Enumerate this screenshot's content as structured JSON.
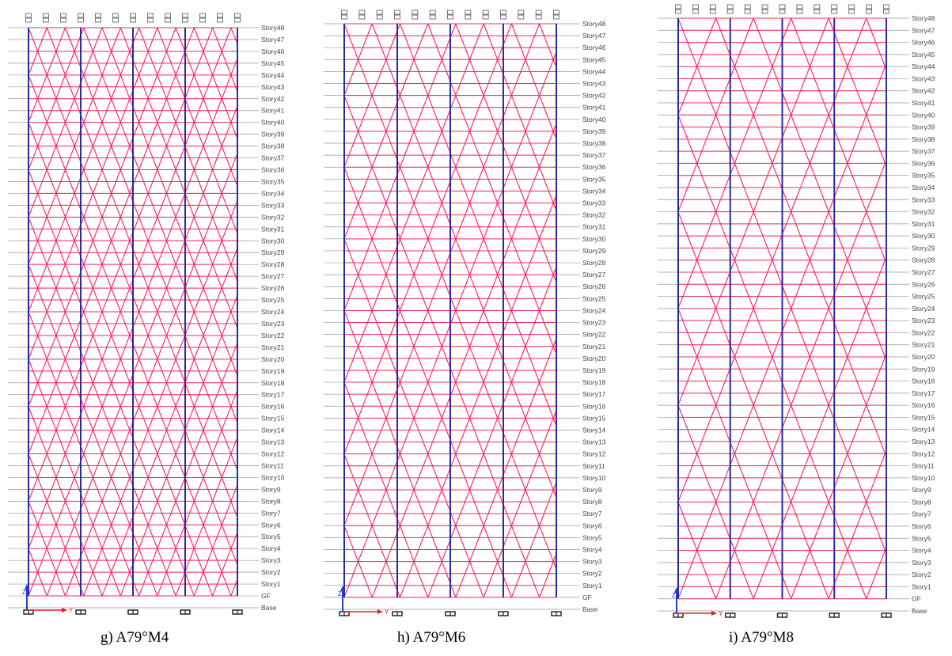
{
  "story_labels": [
    "Story48",
    "Story47",
    "Story46",
    "Story45",
    "Story44",
    "Story43",
    "Story42",
    "Story41",
    "Story40",
    "Story39",
    "Story38",
    "Story37",
    "Story36",
    "Story35",
    "Story34",
    "Story33",
    "Story32",
    "Story31",
    "Story30",
    "Story29",
    "Story28",
    "Story27",
    "Story26",
    "Story25",
    "Story24",
    "Story23",
    "Story22",
    "Story21",
    "Story20",
    "Story19",
    "Story18",
    "Story17",
    "Story16",
    "Story15",
    "Story14",
    "Story13",
    "Story12",
    "Story11",
    "Story10",
    "Story9",
    "Story8",
    "Story7",
    "Story6",
    "Story5",
    "Story4",
    "Story3",
    "Story2",
    "Story1",
    "GF",
    "Base"
  ],
  "axis_labels": {
    "vertical": "Z",
    "horizontal": "Y"
  },
  "colors": {
    "brace": "#ff1a6e",
    "beam": "#ee2f55",
    "column": "#262b9e",
    "gridline": "#9a9a9a",
    "label": "#444444",
    "support": "#1a1a1a",
    "axis_z": "#1f3fd6",
    "axis_y": "#e02020"
  },
  "panels": [
    {
      "caption": "g) A79°M4",
      "diagrid_module_stories": 4,
      "bays": 4
    },
    {
      "caption": "h) A79°M6",
      "diagrid_module_stories": 6,
      "bays": 4
    },
    {
      "caption": "i) A79°M8",
      "diagrid_module_stories": 8,
      "bays": 4
    }
  ]
}
